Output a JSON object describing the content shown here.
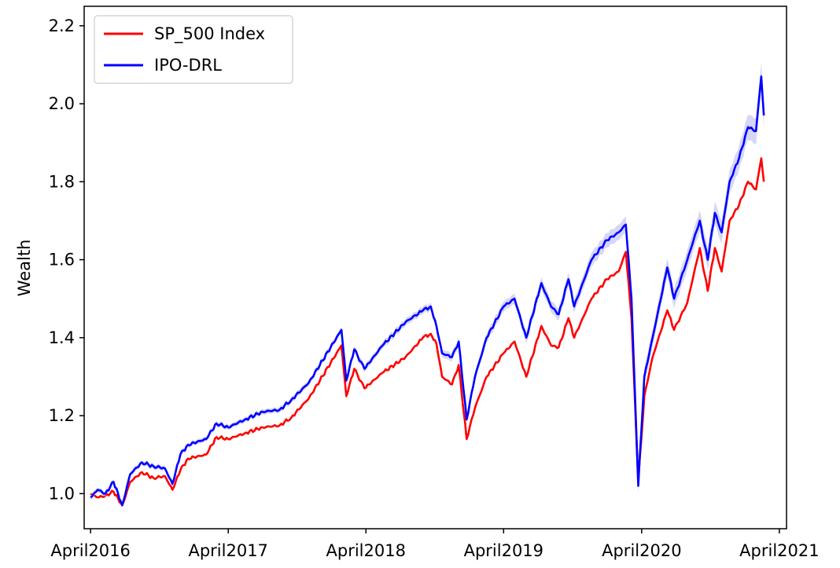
{
  "chart_data": {
    "type": "line",
    "title": "",
    "xlabel": "",
    "ylabel": "Wealth",
    "x_ticks": [
      "April2016",
      "April2017",
      "April2018",
      "April2019",
      "April2020",
      "April2021"
    ],
    "y_ticks": [
      "1.0",
      "1.2",
      "1.4",
      "1.6",
      "1.8",
      "2.0",
      "2.2"
    ],
    "xlim": [
      "2016-03-15",
      "2021-04-20"
    ],
    "ylim": [
      0.91,
      2.25
    ],
    "grid": false,
    "legend_position": "top-left",
    "series": [
      {
        "name": "SP_500 Index",
        "color": "#ff0000",
        "points": [
          [
            "2016-04-01",
            1.0
          ],
          [
            "2016-04-20",
            0.99
          ],
          [
            "2016-05-10",
            0.995
          ],
          [
            "2016-06-01",
            1.005
          ],
          [
            "2016-06-24",
            0.97
          ],
          [
            "2016-07-15",
            1.03
          ],
          [
            "2016-08-15",
            1.055
          ],
          [
            "2016-09-15",
            1.04
          ],
          [
            "2016-10-15",
            1.045
          ],
          [
            "2016-11-04",
            1.01
          ],
          [
            "2016-11-25",
            1.06
          ],
          [
            "2016-12-15",
            1.09
          ],
          [
            "2017-02-01",
            1.1
          ],
          [
            "2017-03-01",
            1.145
          ],
          [
            "2017-04-01",
            1.14
          ],
          [
            "2017-05-15",
            1.155
          ],
          [
            "2017-07-01",
            1.17
          ],
          [
            "2017-08-15",
            1.175
          ],
          [
            "2017-09-15",
            1.195
          ],
          [
            "2017-11-01",
            1.245
          ],
          [
            "2018-01-26",
            1.38
          ],
          [
            "2018-02-08",
            1.25
          ],
          [
            "2018-03-01",
            1.32
          ],
          [
            "2018-03-28",
            1.27
          ],
          [
            "2018-05-15",
            1.31
          ],
          [
            "2018-07-15",
            1.35
          ],
          [
            "2018-08-30",
            1.4
          ],
          [
            "2018-09-20",
            1.41
          ],
          [
            "2018-10-05",
            1.385
          ],
          [
            "2018-10-20",
            1.3
          ],
          [
            "2018-11-15",
            1.28
          ],
          [
            "2018-12-03",
            1.33
          ],
          [
            "2018-12-24",
            1.14
          ],
          [
            "2019-01-15",
            1.22
          ],
          [
            "2019-02-15",
            1.3
          ],
          [
            "2019-04-01",
            1.36
          ],
          [
            "2019-04-30",
            1.39
          ],
          [
            "2019-05-31",
            1.3
          ],
          [
            "2019-07-10",
            1.43
          ],
          [
            "2019-08-05",
            1.38
          ],
          [
            "2019-08-25",
            1.375
          ],
          [
            "2019-09-20",
            1.45
          ],
          [
            "2019-10-05",
            1.4
          ],
          [
            "2019-11-20",
            1.5
          ],
          [
            "2019-12-31",
            1.55
          ],
          [
            "2020-01-31",
            1.57
          ],
          [
            "2020-02-19",
            1.62
          ],
          [
            "2020-03-05",
            1.45
          ],
          [
            "2020-03-23",
            1.03
          ],
          [
            "2020-04-08",
            1.25
          ],
          [
            "2020-04-30",
            1.35
          ],
          [
            "2020-06-08",
            1.47
          ],
          [
            "2020-06-26",
            1.42
          ],
          [
            "2020-07-31",
            1.49
          ],
          [
            "2020-09-02",
            1.63
          ],
          [
            "2020-09-23",
            1.52
          ],
          [
            "2020-10-12",
            1.63
          ],
          [
            "2020-10-30",
            1.57
          ],
          [
            "2020-11-20",
            1.7
          ],
          [
            "2020-12-15",
            1.74
          ],
          [
            "2021-01-08",
            1.8
          ],
          [
            "2021-01-29",
            1.78
          ],
          [
            "2021-02-12",
            1.86
          ],
          [
            "2021-02-19",
            1.8
          ]
        ]
      },
      {
        "name": "IPO-DRL",
        "color": "#0000ff",
        "band_color": "#c8c8f4",
        "points": [
          [
            "2016-04-01",
            0.99
          ],
          [
            "2016-04-20",
            1.01
          ],
          [
            "2016-05-10",
            1.0
          ],
          [
            "2016-06-01",
            1.03
          ],
          [
            "2016-06-24",
            0.97
          ],
          [
            "2016-07-15",
            1.05
          ],
          [
            "2016-08-15",
            1.08
          ],
          [
            "2016-09-15",
            1.07
          ],
          [
            "2016-10-15",
            1.065
          ],
          [
            "2016-11-04",
            1.025
          ],
          [
            "2016-11-25",
            1.1
          ],
          [
            "2016-12-15",
            1.125
          ],
          [
            "2017-02-01",
            1.14
          ],
          [
            "2017-03-01",
            1.18
          ],
          [
            "2017-04-01",
            1.17
          ],
          [
            "2017-05-15",
            1.19
          ],
          [
            "2017-07-01",
            1.21
          ],
          [
            "2017-08-15",
            1.215
          ],
          [
            "2017-09-15",
            1.24
          ],
          [
            "2017-11-01",
            1.285
          ],
          [
            "2018-01-26",
            1.42
          ],
          [
            "2018-02-08",
            1.29
          ],
          [
            "2018-03-01",
            1.37
          ],
          [
            "2018-03-28",
            1.32
          ],
          [
            "2018-05-15",
            1.38
          ],
          [
            "2018-07-15",
            1.44
          ],
          [
            "2018-08-30",
            1.47
          ],
          [
            "2018-09-20",
            1.48
          ],
          [
            "2018-10-05",
            1.43
          ],
          [
            "2018-10-20",
            1.36
          ],
          [
            "2018-11-15",
            1.35
          ],
          [
            "2018-12-03",
            1.39
          ],
          [
            "2018-12-24",
            1.19
          ],
          [
            "2019-01-15",
            1.3
          ],
          [
            "2019-02-15",
            1.4
          ],
          [
            "2019-04-01",
            1.48
          ],
          [
            "2019-04-30",
            1.5
          ],
          [
            "2019-05-31",
            1.4
          ],
          [
            "2019-07-10",
            1.54
          ],
          [
            "2019-08-05",
            1.48
          ],
          [
            "2019-08-25",
            1.46
          ],
          [
            "2019-09-20",
            1.55
          ],
          [
            "2019-10-05",
            1.48
          ],
          [
            "2019-11-20",
            1.6
          ],
          [
            "2019-12-31",
            1.65
          ],
          [
            "2020-01-31",
            1.67
          ],
          [
            "2020-02-19",
            1.69
          ],
          [
            "2020-03-05",
            1.5
          ],
          [
            "2020-03-23",
            1.02
          ],
          [
            "2020-04-08",
            1.3
          ],
          [
            "2020-04-30",
            1.4
          ],
          [
            "2020-06-08",
            1.58
          ],
          [
            "2020-06-26",
            1.5
          ],
          [
            "2020-07-31",
            1.6
          ],
          [
            "2020-09-02",
            1.7
          ],
          [
            "2020-09-23",
            1.6
          ],
          [
            "2020-10-12",
            1.72
          ],
          [
            "2020-10-30",
            1.67
          ],
          [
            "2020-11-20",
            1.8
          ],
          [
            "2020-12-15",
            1.86
          ],
          [
            "2021-01-08",
            1.94
          ],
          [
            "2021-01-29",
            1.93
          ],
          [
            "2021-02-12",
            2.07
          ],
          [
            "2021-02-19",
            1.97
          ]
        ]
      }
    ]
  }
}
